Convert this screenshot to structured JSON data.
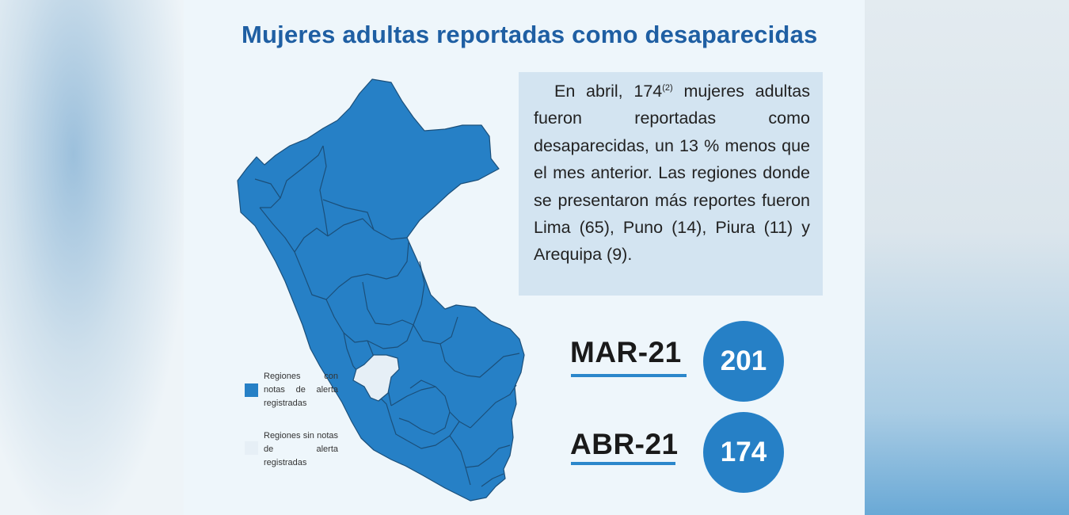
{
  "title": "Mujeres adultas reportadas como desaparecidas",
  "summary": {
    "pre": "En abril, 174",
    "superscript": "(2)",
    "post": " mujeres adultas fueron reportadas como desaparecidas, un 13 % menos que el mes anterior. Las regiones donde se presentaron más reportes fueron Lima (65), Puno (14), Piura (11) y Arequipa (9)."
  },
  "map": {
    "region_color_alert": "#2680c6",
    "region_color_no_alert": "#e6eff6",
    "border_color": "#1b4f7a"
  },
  "legend": [
    {
      "label": "Regiones con notas de alerta registradas",
      "color": "#2680c6"
    },
    {
      "label": "Regiones sin notas de alerta registradas",
      "color": "#e6eff6"
    }
  ],
  "stats": [
    {
      "period": "MAR-21",
      "value": "201"
    },
    {
      "period": "ABR-21",
      "value": "174"
    }
  ]
}
